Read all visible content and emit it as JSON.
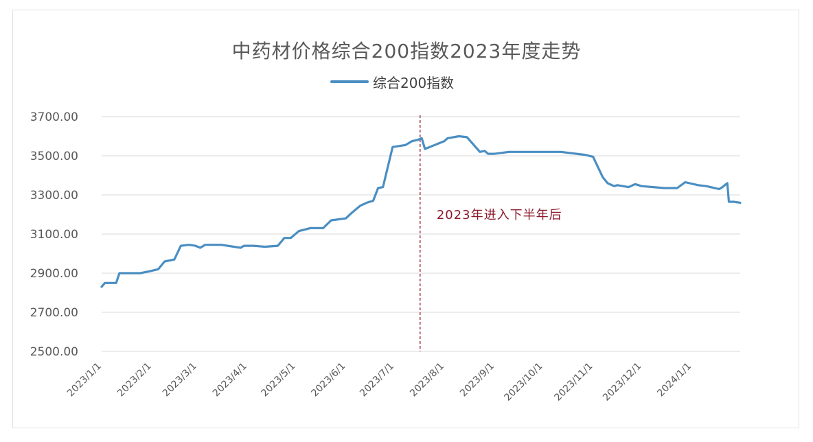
{
  "chart_data": {
    "type": "line",
    "title": "中药材价格综合200指数2023年度走势",
    "legend": {
      "position": "top",
      "entries": [
        "综合200指数"
      ]
    },
    "xlabel": "",
    "ylabel": "",
    "ylim": [
      2500,
      3700
    ],
    "y_ticks": [
      "3700.00",
      "3500.00",
      "3300.00",
      "3100.00",
      "2900.00",
      "2700.00",
      "2500.00"
    ],
    "y_tick_values": [
      3700,
      3500,
      3300,
      3100,
      2900,
      2700,
      2500
    ],
    "grid": true,
    "x_ticks": [
      "2023/1/1",
      "2023/2/1",
      "2023/3/1",
      "2023/4/1",
      "2023/5/1",
      "2023/6/1",
      "2023/7/1",
      "2023/8/1",
      "2023/9/1",
      "2023/10/1",
      "2023/11/1",
      "2023/12/1",
      "2024/1/1"
    ],
    "x_range": [
      "2023/1/1",
      "2024/1/31"
    ],
    "color": "#4a8ec2",
    "annotation": {
      "text": "2023年进入下半年后",
      "at": "2023/7/17",
      "style": "dashed-vertical-line",
      "color": "#8b1a2b"
    },
    "series": [
      {
        "name": "综合200指数",
        "x": [
          "2023/1/1",
          "2023/1/3",
          "2023/1/10",
          "2023/1/12",
          "2023/1/17",
          "2023/1/25",
          "2023/1/31",
          "2023/2/5",
          "2023/2/9",
          "2023/2/12",
          "2023/2/15",
          "2023/2/19",
          "2023/2/24",
          "2023/2/28",
          "2023/3/3",
          "2023/3/6",
          "2023/3/16",
          "2023/3/28",
          "2023/3/30",
          "2023/4/5",
          "2023/4/12",
          "2023/4/20",
          "2023/4/24",
          "2023/4/28",
          "2023/5/3",
          "2023/5/10",
          "2023/5/18",
          "2023/5/23",
          "2023/6/1",
          "2023/6/5",
          "2023/6/10",
          "2023/6/14",
          "2023/6/18",
          "2023/6/21",
          "2023/6/24",
          "2023/6/30",
          "2023/7/8",
          "2023/7/12",
          "2023/7/15",
          "2023/7/18",
          "2023/7/20",
          "2023/7/26",
          "2023/8/1",
          "2023/8/3",
          "2023/8/10",
          "2023/8/15",
          "2023/8/23",
          "2023/8/26",
          "2023/8/28",
          "2023/9/1",
          "2023/9/10",
          "2023/9/25",
          "2023/10/12",
          "2023/10/27",
          "2023/11/1",
          "2023/11/7",
          "2023/11/10",
          "2023/11/14",
          "2023/11/16",
          "2023/11/23",
          "2023/11/27",
          "2023/12/1",
          "2023/12/15",
          "2023/12/23",
          "2023/12/28",
          "2024/1/5",
          "2024/1/10",
          "2024/1/18",
          "2024/1/20",
          "2024/1/23",
          "2024/1/24",
          "2024/1/27",
          "2024/1/31"
        ],
        "values": [
          2830,
          2850,
          2850,
          2900,
          2900,
          2900,
          2910,
          2920,
          2960,
          2965,
          2970,
          3040,
          3045,
          3040,
          3030,
          3045,
          3045,
          3030,
          3040,
          3040,
          3035,
          3040,
          3080,
          3080,
          3115,
          3130,
          3130,
          3170,
          3180,
          3210,
          3245,
          3260,
          3270,
          3335,
          3340,
          3545,
          3555,
          3575,
          3580,
          3590,
          3535,
          3555,
          3575,
          3590,
          3600,
          3595,
          3520,
          3525,
          3510,
          3510,
          3520,
          3520,
          3520,
          3505,
          3495,
          3390,
          3360,
          3345,
          3350,
          3340,
          3355,
          3345,
          3335,
          3335,
          3365,
          3350,
          3345,
          3330,
          3340,
          3360,
          3265,
          3265,
          3260
        ]
      }
    ]
  }
}
